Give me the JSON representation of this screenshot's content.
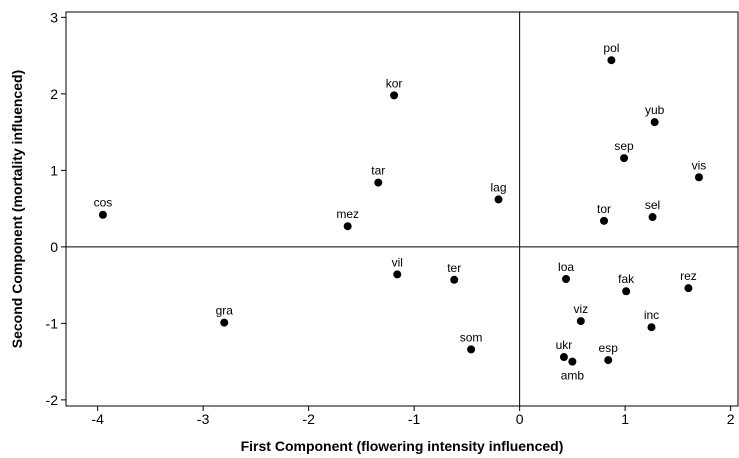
{
  "chart_data": {
    "type": "scatter",
    "xlabel": "First Component (flowering intensity influenced)",
    "ylabel": "Second Component (mortality influenced)",
    "xlim": [
      -4.3,
      2.07
    ],
    "ylim": [
      -2.08,
      3.07
    ],
    "x_ticks": [
      -4,
      -3,
      -2,
      -1,
      0,
      1,
      2
    ],
    "y_ticks": [
      -2,
      -1,
      0,
      1,
      2,
      3
    ],
    "reference_lines": {
      "x": 0,
      "y": 0
    },
    "grid": false,
    "points": [
      {
        "label": "cos",
        "x": -3.95,
        "y": 0.42
      },
      {
        "label": "gra",
        "x": -2.8,
        "y": -0.99
      },
      {
        "label": "kor",
        "x": -1.19,
        "y": 1.98
      },
      {
        "label": "tar",
        "x": -1.34,
        "y": 0.84
      },
      {
        "label": "mez",
        "x": -1.63,
        "y": 0.27
      },
      {
        "label": "vil",
        "x": -1.16,
        "y": -0.36
      },
      {
        "label": "ter",
        "x": -0.62,
        "y": -0.43
      },
      {
        "label": "lag",
        "x": -0.2,
        "y": 0.62
      },
      {
        "label": "som",
        "x": -0.46,
        "y": -1.34
      },
      {
        "label": "pol",
        "x": 0.87,
        "y": 2.44
      },
      {
        "label": "yub",
        "x": 1.28,
        "y": 1.63
      },
      {
        "label": "sep",
        "x": 0.99,
        "y": 1.16
      },
      {
        "label": "vis",
        "x": 1.7,
        "y": 0.91
      },
      {
        "label": "tor",
        "x": 0.8,
        "y": 0.34
      },
      {
        "label": "sel",
        "x": 1.26,
        "y": 0.39
      },
      {
        "label": "loa",
        "x": 0.44,
        "y": -0.42
      },
      {
        "label": "fak",
        "x": 1.01,
        "y": -0.58
      },
      {
        "label": "rez",
        "x": 1.6,
        "y": -0.54
      },
      {
        "label": "viz",
        "x": 0.58,
        "y": -0.97
      },
      {
        "label": "inc",
        "x": 1.25,
        "y": -1.05
      },
      {
        "label": "ukr",
        "x": 0.42,
        "y": -1.44
      },
      {
        "label": "esp",
        "x": 0.84,
        "y": -1.48
      },
      {
        "label": "amb",
        "x": 0.5,
        "y": -1.5
      }
    ]
  }
}
